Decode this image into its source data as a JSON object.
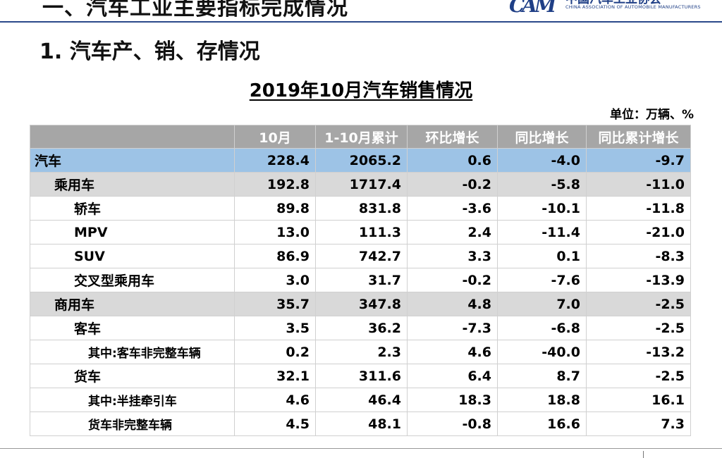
{
  "header": {
    "top_heading": "一、汽车工业主要指标完成情况",
    "logo_cn": "中国汽车工业协会",
    "logo_en": "CHINA ASSOCIATION OF AUTOMOBILE MANUFACTURERS",
    "brand_color": "#1f3f86"
  },
  "section_title": "1. 汽车产、销、存情况",
  "table": {
    "title": "2019年10月汽车销售情况",
    "unit": "单位：万辆、%",
    "columns": [
      "",
      "10月",
      "1-10月累计",
      "环比增长",
      "同比增长",
      "同比累计增长"
    ],
    "rows": [
      {
        "level": 0,
        "name": "汽车",
        "values": [
          "228.4",
          "2065.2",
          "0.6",
          "-4.0",
          "-9.7"
        ]
      },
      {
        "level": 1,
        "name": "乘用车",
        "values": [
          "192.8",
          "1717.4",
          "-0.2",
          "-5.8",
          "-11.0"
        ]
      },
      {
        "level": 2,
        "name": "轿车",
        "values": [
          "89.8",
          "831.8",
          "-3.6",
          "-10.1",
          "-11.8"
        ]
      },
      {
        "level": 2,
        "name": "MPV",
        "values": [
          "13.0",
          "111.3",
          "2.4",
          "-11.4",
          "-21.0"
        ]
      },
      {
        "level": 2,
        "name": "SUV",
        "values": [
          "86.9",
          "742.7",
          "3.3",
          "0.1",
          "-8.3"
        ]
      },
      {
        "level": 2,
        "name": "交叉型乘用车",
        "values": [
          "3.0",
          "31.7",
          "-0.2",
          "-7.6",
          "-13.9"
        ]
      },
      {
        "level": 1,
        "name": "商用车",
        "values": [
          "35.7",
          "347.8",
          "4.8",
          "7.0",
          "-2.5"
        ]
      },
      {
        "level": 2,
        "name": "客车",
        "values": [
          "3.5",
          "36.2",
          "-7.3",
          "-6.8",
          "-2.5"
        ]
      },
      {
        "level": 3,
        "name": "其中:客车非完整车辆",
        "values": [
          "0.2",
          "2.3",
          "4.6",
          "-40.0",
          "-13.2"
        ]
      },
      {
        "level": 2,
        "name": "货车",
        "values": [
          "32.1",
          "311.6",
          "6.4",
          "8.7",
          "-2.5"
        ]
      },
      {
        "level": 3,
        "name": "其中:半挂牵引车",
        "values": [
          "4.6",
          "46.4",
          "18.3",
          "18.8",
          "16.1"
        ]
      },
      {
        "level": 3,
        "name": "货车非完整车辆",
        "values": [
          "4.5",
          "48.1",
          "-0.8",
          "16.6",
          "7.3"
        ]
      }
    ],
    "colors": {
      "header_bg": "#a6a6a6",
      "total_row_bg": "#9dc3e6",
      "category_row_bg": "#d9d9d9"
    }
  }
}
